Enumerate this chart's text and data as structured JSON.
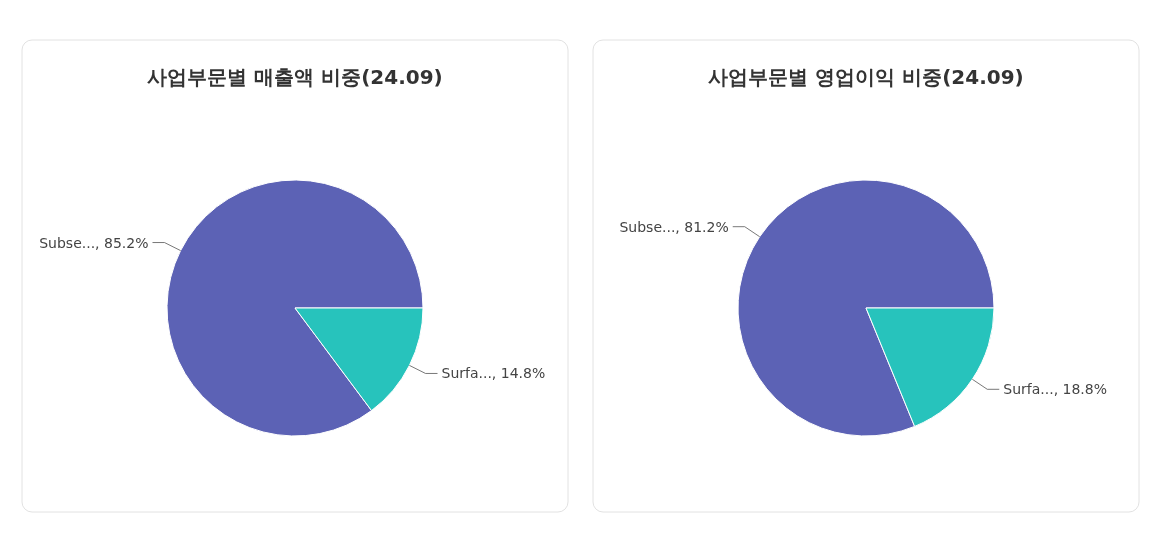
{
  "chart_data": [
    {
      "type": "pie",
      "title": "사업부문별 매출액 비중(24.09)",
      "categories": [
        "Subse...",
        "Surfa..."
      ],
      "values": [
        85.2,
        14.8
      ],
      "value_labels": [
        "85.2%",
        "14.8%"
      ],
      "colors": [
        "#5c62b5",
        "#27c3bc"
      ]
    },
    {
      "type": "pie",
      "title": "사업부문별 영업이익 비중(24.09)",
      "categories": [
        "Subse...",
        "Surfa..."
      ],
      "values": [
        81.2,
        18.8
      ],
      "value_labels": [
        "81.2%",
        "18.8%"
      ],
      "colors": [
        "#5c62b5",
        "#27c3bc"
      ]
    }
  ]
}
